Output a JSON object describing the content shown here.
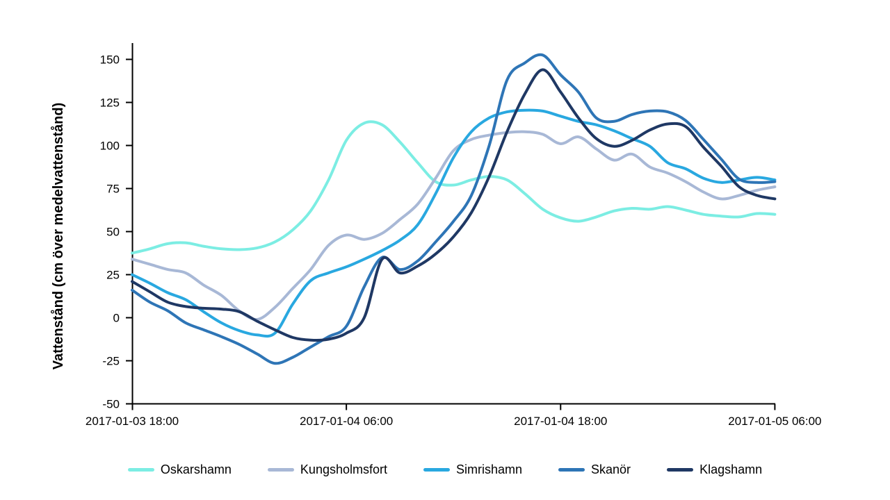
{
  "chart_data": {
    "type": "line",
    "ylabel": "Vattenstånd (cm över medelvattenstånd)",
    "ylim": [
      -50,
      150
    ],
    "yticks": [
      150,
      125,
      100,
      75,
      50,
      25,
      0,
      -25,
      -50
    ],
    "x_range_hours": [
      0,
      36
    ],
    "sample_interval_hours": 1,
    "xticks": [
      {
        "hour": 0,
        "label": "2017-01-03 18:00"
      },
      {
        "hour": 12,
        "label": "2017-01-04 06:00"
      },
      {
        "hour": 24,
        "label": "2017-01-04 18:00"
      },
      {
        "hour": 36,
        "label": "2017-01-05 06:00"
      }
    ],
    "grid": false,
    "legend_position": "bottom",
    "background": "#ffffff",
    "axis_color": "#000000",
    "series": [
      {
        "name": "Oskarshamn",
        "color": "#7CEDE3",
        "values": [
          37.5,
          40,
          43,
          43.5,
          41.5,
          40,
          39.5,
          40.5,
          44,
          51,
          62,
          80,
          103,
          113,
          112,
          102,
          90,
          79,
          77,
          80,
          82,
          80,
          72,
          63,
          58,
          56,
          58.5,
          62,
          63.5,
          63,
          64.5,
          62.5,
          60,
          59,
          58.5,
          60.5,
          60
        ]
      },
      {
        "name": "Kungsholmsfort",
        "color": "#A8B8D6",
        "values": [
          34,
          31,
          28,
          26,
          19,
          13,
          4,
          -1,
          6,
          17,
          28,
          42,
          48,
          45.5,
          49,
          57,
          66,
          81,
          97,
          103.5,
          106,
          107.5,
          108,
          106.5,
          101,
          105,
          98,
          91.5,
          95,
          87.5,
          84,
          79,
          73,
          69,
          71,
          74,
          76
        ]
      },
      {
        "name": "Simrishamn",
        "color": "#29A8E0",
        "values": [
          25,
          20,
          14.5,
          10.5,
          3.5,
          -3,
          -7.5,
          -10,
          -9,
          8,
          21.5,
          26,
          29.5,
          34,
          39,
          45,
          54,
          72,
          93,
          108,
          116,
          119.5,
          120.5,
          120,
          117,
          114,
          112,
          108.5,
          104,
          99.5,
          90,
          86.5,
          81,
          78.5,
          80,
          81.5,
          80
        ]
      },
      {
        "name": "Skanör",
        "color": "#2E75B6",
        "values": [
          16,
          9,
          4,
          -3,
          -7,
          -11,
          -15.5,
          -21,
          -26.5,
          -23,
          -17,
          -11,
          -5,
          18,
          35,
          28,
          33,
          44,
          56,
          71,
          100,
          138,
          148,
          152.5,
          141,
          131,
          116,
          114,
          118,
          120,
          119.5,
          114.5,
          103.5,
          92,
          80.5,
          78.5,
          79
        ]
      },
      {
        "name": "Klagshamn",
        "color": "#1F3864",
        "values": [
          21,
          15,
          9,
          6.5,
          5.5,
          5,
          3.5,
          -2,
          -7,
          -11.5,
          -13,
          -12.5,
          -9,
          0,
          34,
          26,
          30,
          37,
          47,
          61,
          82,
          108,
          130,
          144,
          131,
          116,
          104,
          99.5,
          103,
          109,
          112.5,
          111,
          99,
          88,
          76,
          71,
          69
        ]
      }
    ]
  }
}
